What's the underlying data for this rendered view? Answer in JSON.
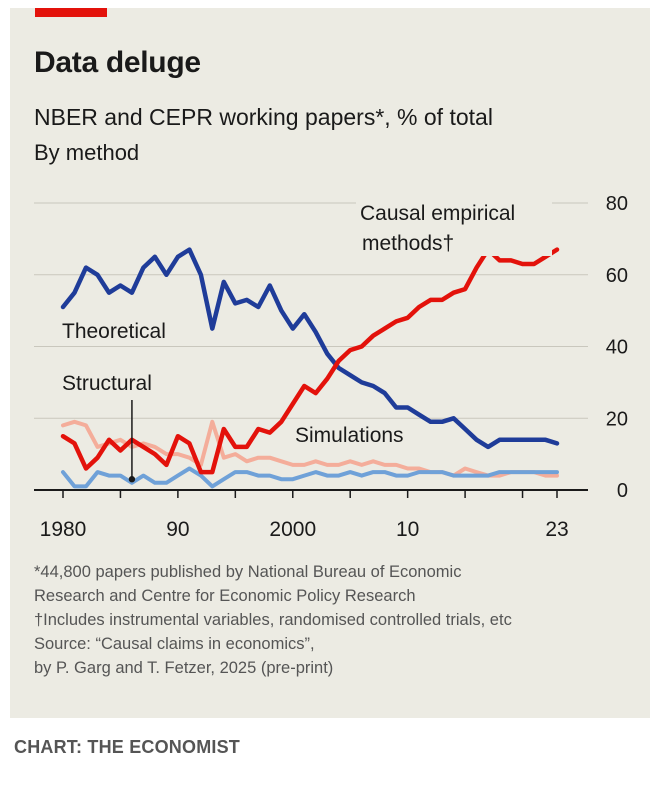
{
  "title": "Data deluge",
  "subtitle": "NBER and CEPR working papers*, % of total",
  "subtitle2": "By method",
  "notes": [
    "*44,800 papers published by National Bureau of Economic",
    "Research and Centre for Economic Policy Research",
    "†Includes instrumental variables, randomised controlled trials, etc",
    "Source: “Causal claims in economics”,",
    "by P. Garg and T. Fetzer, 2025 (pre-print)"
  ],
  "credit": "CHART: THE ECONOMIST",
  "colors": {
    "causal": "#e3120b",
    "theoretical": "#1f3c99",
    "structural": "#f4ad9a",
    "simulations": "#6fa1d8",
    "background": "#ecebe3",
    "brand_red": "#e3120b"
  },
  "chart_data": {
    "type": "line",
    "title": "Data deluge",
    "subtitle": "NBER and CEPR working papers*, % of total",
    "xlim": [
      1980,
      2023
    ],
    "ylim": [
      0,
      80
    ],
    "x_ticks": [
      1980,
      1985,
      1990,
      1995,
      2000,
      2005,
      2010,
      2015,
      2020,
      2023
    ],
    "x_tick_labels": [
      "1980",
      "90",
      "2000",
      "10",
      "23"
    ],
    "x_tick_label_values": [
      1980,
      1990,
      2000,
      2010,
      2023
    ],
    "y_ticks": [
      0,
      20,
      40,
      60,
      80
    ],
    "y_tick_labels": [
      "0",
      "20",
      "40",
      "60",
      "80"
    ],
    "y_axis_side": "right",
    "grid": true,
    "x": [
      1980,
      1981,
      1982,
      1983,
      1984,
      1985,
      1986,
      1987,
      1988,
      1989,
      1990,
      1991,
      1992,
      1993,
      1994,
      1995,
      1996,
      1997,
      1998,
      1999,
      2000,
      2001,
      2002,
      2003,
      2004,
      2005,
      2006,
      2007,
      2008,
      2009,
      2010,
      2011,
      2012,
      2013,
      2014,
      2015,
      2016,
      2017,
      2018,
      2019,
      2020,
      2021,
      2022,
      2023
    ],
    "series": [
      {
        "name": "Causal empirical methods†",
        "label": [
          "Causal empirical",
          "methods†"
        ],
        "color": "#e3120b",
        "values": [
          15,
          13,
          6,
          9,
          14,
          11,
          14,
          12,
          10,
          7,
          15,
          13,
          5,
          5,
          17,
          12,
          12,
          17,
          16,
          19,
          24,
          29,
          27,
          31,
          36,
          39,
          40,
          43,
          45,
          47,
          48,
          51,
          53,
          53,
          55,
          56,
          62,
          67,
          64,
          64,
          63,
          63,
          65,
          67
        ]
      },
      {
        "name": "Theoretical",
        "label": [
          "Theoretical"
        ],
        "color": "#1f3c99",
        "values": [
          51,
          55,
          62,
          60,
          55,
          57,
          55,
          62,
          65,
          60,
          65,
          67,
          60,
          45,
          58,
          52,
          53,
          51,
          57,
          50,
          45,
          49,
          44,
          38,
          34,
          32,
          30,
          29,
          27,
          23,
          23,
          21,
          19,
          19,
          20,
          17,
          14,
          12,
          14,
          14,
          14,
          14,
          14,
          13
        ]
      },
      {
        "name": "Structural",
        "label": [
          "Structural"
        ],
        "color": "#f4ad9a",
        "values": [
          18,
          19,
          18,
          12,
          13,
          14,
          12,
          13,
          12,
          10,
          10,
          9,
          7,
          19,
          9,
          10,
          8,
          9,
          9,
          8,
          7,
          7,
          8,
          7,
          7,
          8,
          7,
          8,
          7,
          7,
          6,
          6,
          5,
          5,
          4,
          6,
          5,
          4,
          4,
          5,
          5,
          5,
          4,
          4
        ]
      },
      {
        "name": "Simulations",
        "label": [
          "Simulations"
        ],
        "color": "#6fa1d8",
        "values": [
          5,
          1,
          1,
          5,
          4,
          4,
          2,
          4,
          2,
          2,
          4,
          6,
          4,
          1,
          3,
          5,
          5,
          4,
          4,
          3,
          3,
          4,
          5,
          4,
          4,
          5,
          4,
          5,
          5,
          4,
          4,
          5,
          5,
          5,
          4,
          4,
          4,
          4,
          5,
          5,
          5,
          5,
          5,
          5
        ]
      }
    ],
    "annotations": [
      {
        "text": "Structural",
        "marker_x": 1986,
        "marker_y": 3
      }
    ]
  }
}
